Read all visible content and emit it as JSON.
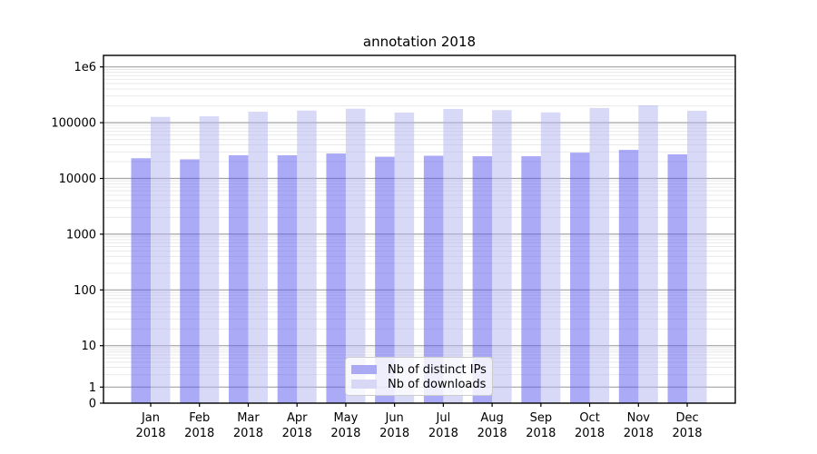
{
  "figure": {
    "title": "annotation 2018",
    "background_color": "#ffffff"
  },
  "chart_data": {
    "type": "bar",
    "title": "annotation 2018",
    "categories": [
      "Jan",
      "Feb",
      "Mar",
      "Apr",
      "May",
      "Jun",
      "Jul",
      "Aug",
      "Sep",
      "Oct",
      "Nov",
      "Dec"
    ],
    "category_year": "2018",
    "series": [
      {
        "name": "Nb of distinct IPs",
        "legend_color": "#aaaaf4",
        "fill": "#5555ee",
        "fill_opacity": 0.5,
        "values": [
          23000,
          22000,
          26000,
          26000,
          28000,
          24500,
          25500,
          25000,
          25000,
          29000,
          32500,
          27000
        ]
      },
      {
        "name": "Nb of downloads",
        "legend_color": "#d8d8f6",
        "fill": "#b1b1ef",
        "fill_opacity": 0.5,
        "values": [
          127000,
          130000,
          157000,
          165000,
          178000,
          152000,
          176000,
          168000,
          153000,
          183000,
          205000,
          163000
        ]
      }
    ],
    "xlabel": "",
    "ylabel": "",
    "yscale": "symlog",
    "ylim": [
      0,
      1600000
    ],
    "yticks": [
      {
        "value": 0,
        "label": "0"
      },
      {
        "value": 1,
        "label": "1"
      },
      {
        "value": 10,
        "label": "10"
      },
      {
        "value": 100,
        "label": "100"
      },
      {
        "value": 1000,
        "label": "1000"
      },
      {
        "value": 10000,
        "label": "10000"
      },
      {
        "value": 100000,
        "label": "100000"
      },
      {
        "value": 1000000,
        "label": "1e6"
      }
    ],
    "grid": "horizontal, major and minor (log minors)",
    "legend_position": "lower center inside axes"
  },
  "legend": {
    "items": [
      {
        "label": "Nb of distinct IPs",
        "color": "#aaaaf4"
      },
      {
        "label": "Nb of downloads",
        "color": "#d8d8f6"
      }
    ]
  },
  "colors": {
    "major_grid": "#a3a3a3",
    "minor_grid": "#e9e9e9",
    "axis_frame": "#000000",
    "tick_text": "#000000"
  }
}
